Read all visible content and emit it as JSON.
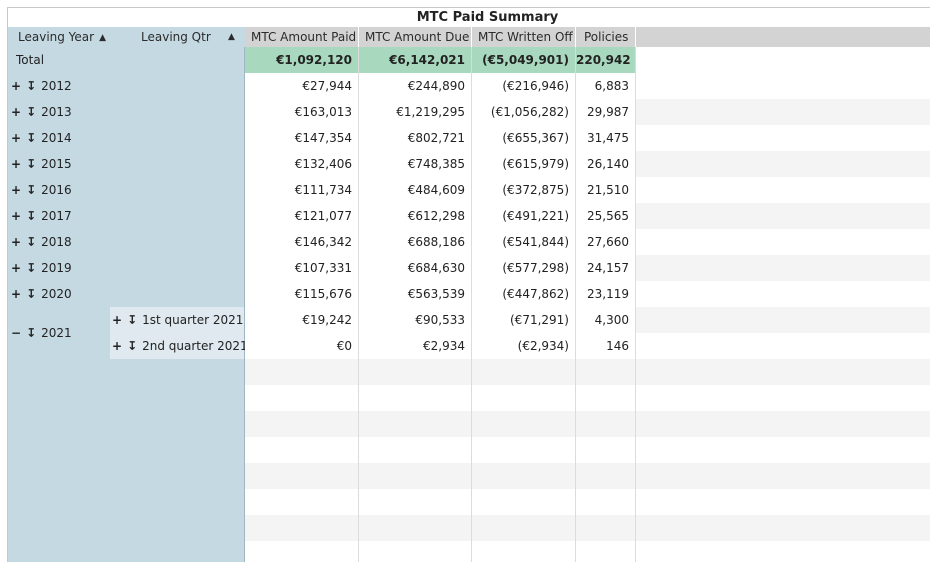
{
  "title": "MTC Paid Summary",
  "headers": {
    "row_dims": [
      {
        "label": "Leaving Year",
        "sort": "▲"
      },
      {
        "label": "Leaving Qtr",
        "sort": "▲"
      }
    ],
    "columns": [
      "MTC Amount Paid",
      "MTC Amount Due",
      "MTC Written Off",
      "Policies"
    ]
  },
  "total": {
    "label": "Total",
    "values": [
      "€1,092,120",
      "€6,142,021",
      "(€5,049,901)",
      "220,942"
    ]
  },
  "expand_glyph": "+",
  "collapse_glyph": "−",
  "drill_glyph": "↧",
  "rows": [
    {
      "year": "2012",
      "values": [
        "€27,944",
        "€244,890",
        "(€216,946)",
        "6,883"
      ]
    },
    {
      "year": "2013",
      "values": [
        "€163,013",
        "€1,219,295",
        "(€1,056,282)",
        "29,987"
      ]
    },
    {
      "year": "2014",
      "values": [
        "€147,354",
        "€802,721",
        "(€655,367)",
        "31,475"
      ]
    },
    {
      "year": "2015",
      "values": [
        "€132,406",
        "€748,385",
        "(€615,979)",
        "26,140"
      ]
    },
    {
      "year": "2016",
      "values": [
        "€111,734",
        "€484,609",
        "(€372,875)",
        "21,510"
      ]
    },
    {
      "year": "2017",
      "values": [
        "€121,077",
        "€612,298",
        "(€491,221)",
        "25,565"
      ]
    },
    {
      "year": "2018",
      "values": [
        "€146,342",
        "€688,186",
        "(€541,844)",
        "27,660"
      ]
    },
    {
      "year": "2019",
      "values": [
        "€107,331",
        "€684,630",
        "(€577,298)",
        "24,157"
      ]
    },
    {
      "year": "2020",
      "values": [
        "€115,676",
        "€563,539",
        "(€447,862)",
        "23,119"
      ]
    }
  ],
  "expanded": {
    "year": "2021",
    "quarters": [
      {
        "label": "1st quarter 2021",
        "values": [
          "€19,242",
          "€90,533",
          "(€71,291)",
          "4,300"
        ]
      },
      {
        "label": "2nd quarter 2021",
        "values": [
          "€0",
          "€2,934",
          "(€2,934)",
          "146"
        ]
      }
    ]
  }
}
